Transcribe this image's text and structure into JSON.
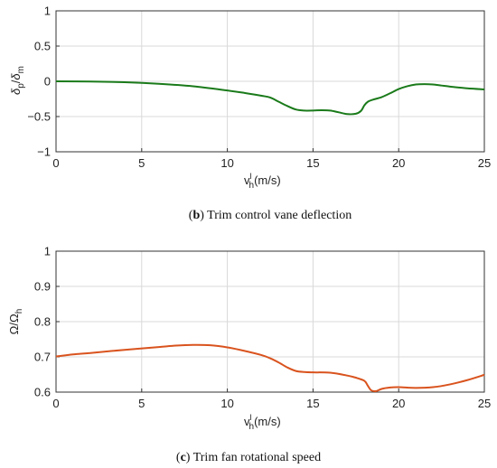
{
  "chart_data": [
    {
      "type": "line",
      "panel_label": "b",
      "caption": "Trim control vane deflection",
      "ylabel_parts": {
        "delta1": "δ",
        "sub1": "p",
        "slash": "/",
        "delta2": "δ",
        "sub2": "m"
      },
      "xlabel_parts": {
        "v": "v",
        "sup": "l",
        "sub": "h",
        "unit": "(m/s)"
      },
      "xlim": [
        0,
        25
      ],
      "ylim": [
        -1,
        1
      ],
      "xticks": [
        0,
        5,
        10,
        15,
        20,
        25
      ],
      "yticks": [
        -1,
        -0.5,
        0,
        0.5,
        1
      ],
      "xtick_labels": [
        "0",
        "5",
        "10",
        "15",
        "20",
        "25"
      ],
      "ytick_labels": [
        "−1",
        "−0.5",
        "0",
        "0.5",
        "1"
      ],
      "grid": true,
      "color": "#1a7a1a",
      "series": [
        {
          "x": [
            0,
            2,
            4,
            6,
            8,
            10,
            11,
            12,
            12.5,
            13,
            13.5,
            14,
            14.5,
            15,
            15.5,
            16,
            16.5,
            17,
            17.5,
            17.8,
            18,
            18.2,
            18.5,
            19,
            19.5,
            20,
            20.5,
            21,
            21.5,
            22,
            22.5,
            23,
            24,
            25
          ],
          "y": [
            0,
            -0.003,
            -0.013,
            -0.035,
            -0.07,
            -0.13,
            -0.165,
            -0.205,
            -0.23,
            -0.29,
            -0.35,
            -0.4,
            -0.415,
            -0.415,
            -0.41,
            -0.415,
            -0.44,
            -0.465,
            -0.46,
            -0.42,
            -0.34,
            -0.29,
            -0.26,
            -0.225,
            -0.17,
            -0.11,
            -0.07,
            -0.045,
            -0.04,
            -0.045,
            -0.06,
            -0.075,
            -0.1,
            -0.115
          ]
        }
      ]
    },
    {
      "type": "line",
      "panel_label": "c",
      "caption": "Trim fan rotational speed",
      "ylabel_parts": {
        "omega1": "Ω",
        "slash": "/",
        "omega2": "Ω",
        "sub": "h"
      },
      "xlabel_parts": {
        "v": "v",
        "sup": "l",
        "sub": "h",
        "unit": "(m/s)"
      },
      "xlim": [
        0,
        25
      ],
      "ylim": [
        0.6,
        1
      ],
      "xticks": [
        0,
        5,
        10,
        15,
        20,
        25
      ],
      "yticks": [
        0.6,
        0.7,
        0.8,
        0.9,
        1
      ],
      "xtick_labels": [
        "0",
        "5",
        "10",
        "15",
        "20",
        "25"
      ],
      "ytick_labels": [
        "0.6",
        "0.7",
        "0.8",
        "0.9",
        "1"
      ],
      "grid": true,
      "color": "#d9531e",
      "series": [
        {
          "x": [
            0,
            1,
            2,
            4,
            6,
            7,
            8,
            9,
            10,
            11,
            12,
            12.5,
            13,
            13.5,
            14,
            14.5,
            15,
            16,
            17,
            17.5,
            18,
            18.2,
            18.4,
            18.7,
            19,
            19.5,
            20,
            21,
            22,
            23,
            24,
            25
          ],
          "y": [
            0.701,
            0.707,
            0.711,
            0.72,
            0.728,
            0.732,
            0.734,
            0.733,
            0.727,
            0.717,
            0.705,
            0.696,
            0.684,
            0.67,
            0.66,
            0.657,
            0.656,
            0.655,
            0.647,
            0.641,
            0.632,
            0.618,
            0.605,
            0.603,
            0.609,
            0.613,
            0.614,
            0.612,
            0.614,
            0.622,
            0.634,
            0.649
          ]
        }
      ]
    }
  ]
}
